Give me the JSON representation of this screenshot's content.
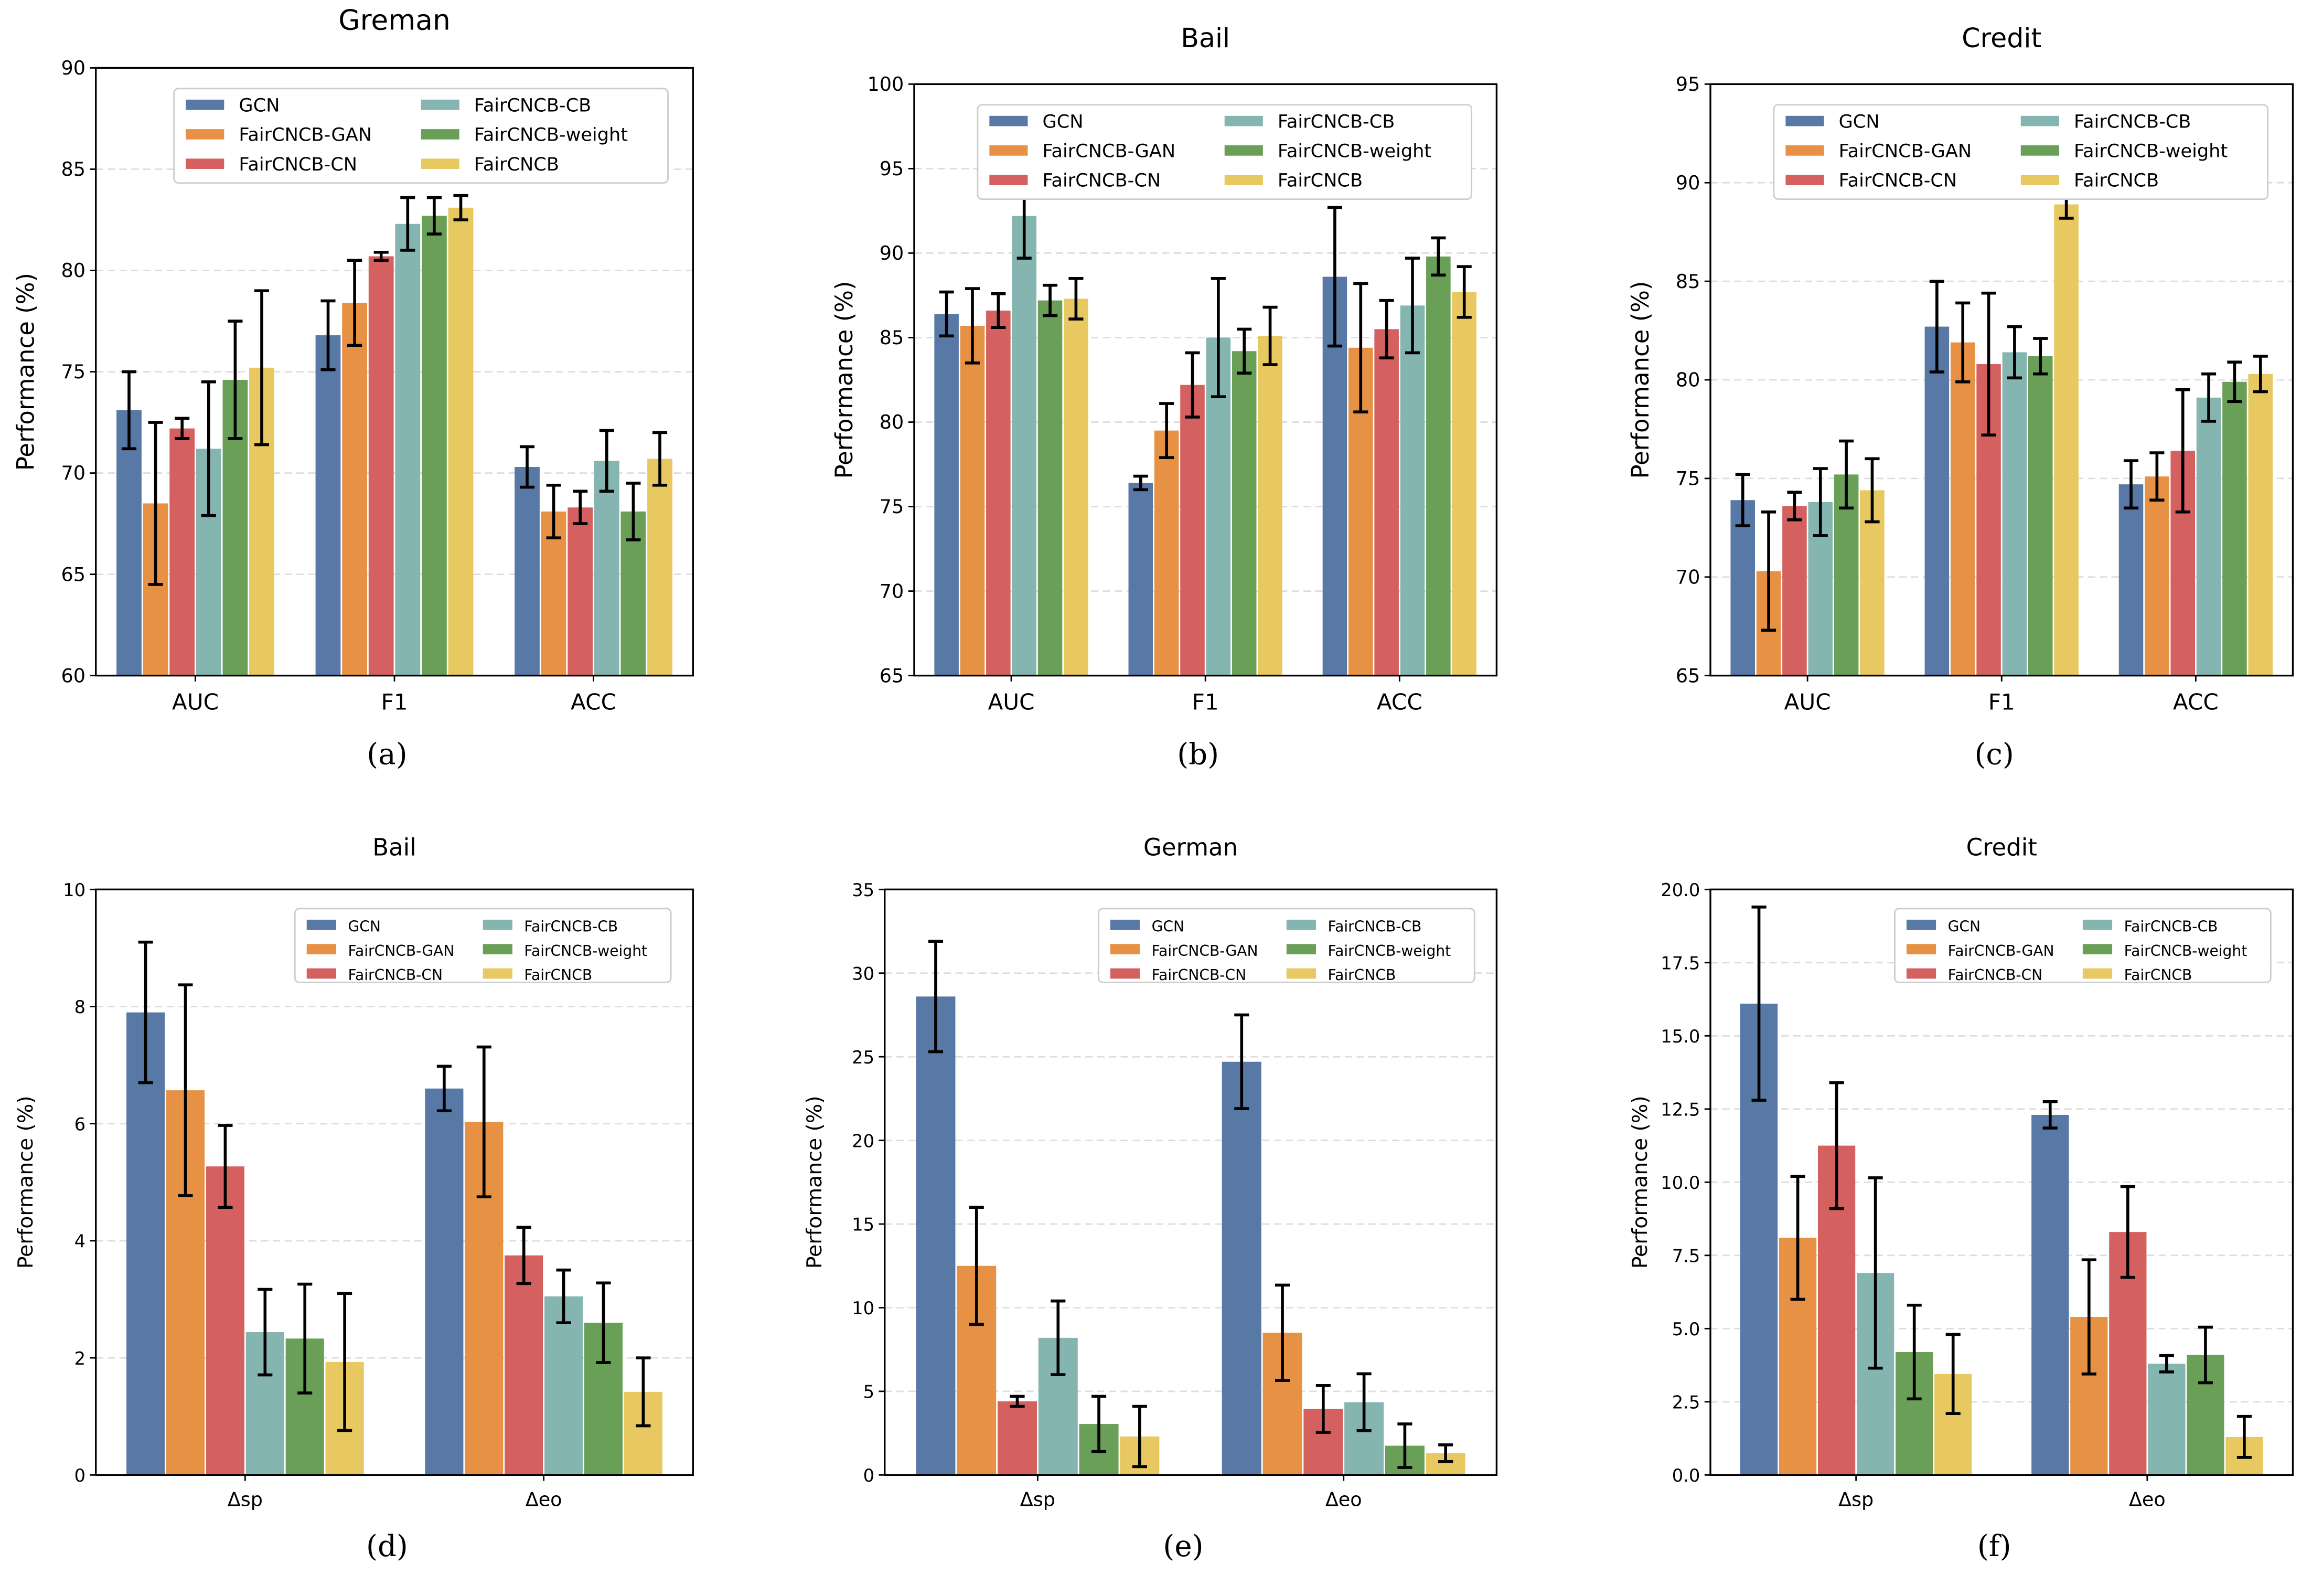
{
  "colors": {
    "GCN": "#5878a5",
    "FairCNCB-GAN": "#e69144",
    "FairCNCB-CN": "#d46060",
    "FairCNCB-CB": "#84b5b0",
    "FairCNCB-weight": "#6a9f58",
    "FairCNCB": "#e8c860"
  },
  "series_names": [
    "GCN",
    "FairCNCB-GAN",
    "FairCNCB-CN",
    "FairCNCB-CB",
    "FairCNCB-weight",
    "FairCNCB"
  ],
  "chart_data": [
    {
      "type": "bar",
      "caption": "(a)",
      "title": "Greman",
      "ylabel": "Performance (%)",
      "ylim": [
        60,
        90
      ],
      "yticks": [
        "60",
        "65",
        "70",
        "75",
        "80",
        "85",
        "90"
      ],
      "categories": [
        "AUC",
        "F1",
        "ACC"
      ],
      "grid": true,
      "legend": "top-right",
      "series": [
        {
          "name": "GCN",
          "values": [
            73.1,
            76.8,
            70.3
          ],
          "errors": [
            1.9,
            1.7,
            1.0
          ]
        },
        {
          "name": "FairCNCB-GAN",
          "values": [
            68.5,
            78.4,
            68.1
          ],
          "errors": [
            4.0,
            2.1,
            1.3
          ]
        },
        {
          "name": "FairCNCB-CN",
          "values": [
            72.2,
            80.7,
            68.3
          ],
          "errors": [
            0.5,
            0.2,
            0.8
          ]
        },
        {
          "name": "FairCNCB-CB",
          "values": [
            71.2,
            82.3,
            70.6
          ],
          "errors": [
            3.3,
            1.3,
            1.5
          ]
        },
        {
          "name": "FairCNCB-weight",
          "values": [
            74.6,
            82.7,
            68.1
          ],
          "errors": [
            2.9,
            0.9,
            1.4
          ]
        },
        {
          "name": "FairCNCB",
          "values": [
            75.2,
            83.1,
            70.7
          ],
          "errors": [
            3.8,
            0.6,
            1.3
          ]
        }
      ]
    },
    {
      "type": "bar",
      "caption": "(b)",
      "title": "Bail",
      "ylabel": "Performance (%)",
      "ylim": [
        65,
        100
      ],
      "yticks": [
        "65",
        "70",
        "75",
        "80",
        "85",
        "90",
        "95",
        "100"
      ],
      "categories": [
        "AUC",
        "F1",
        "ACC"
      ],
      "grid": true,
      "legend": "top-right",
      "series": [
        {
          "name": "GCN",
          "values": [
            86.4,
            76.4,
            88.6
          ],
          "errors": [
            1.3,
            0.4,
            4.1
          ]
        },
        {
          "name": "FairCNCB-GAN",
          "values": [
            85.7,
            79.5,
            84.4
          ],
          "errors": [
            2.2,
            1.6,
            3.8
          ]
        },
        {
          "name": "FairCNCB-CN",
          "values": [
            86.6,
            82.2,
            85.5
          ],
          "errors": [
            1.0,
            1.9,
            1.7
          ]
        },
        {
          "name": "FairCNCB-CB",
          "values": [
            92.2,
            85.0,
            86.9
          ],
          "errors": [
            2.5,
            3.5,
            2.8
          ]
        },
        {
          "name": "FairCNCB-weight",
          "values": [
            87.2,
            84.2,
            89.8
          ],
          "errors": [
            0.9,
            1.3,
            1.1
          ]
        },
        {
          "name": "FairCNCB",
          "values": [
            87.3,
            85.1,
            87.7
          ],
          "errors": [
            1.2,
            1.7,
            1.5
          ]
        }
      ]
    },
    {
      "type": "bar",
      "caption": "(c)",
      "title": "Credit",
      "ylabel": "Performance (%)",
      "ylim": [
        65,
        95
      ],
      "yticks": [
        "65",
        "70",
        "75",
        "80",
        "85",
        "90",
        "95"
      ],
      "categories": [
        "AUC",
        "F1",
        "ACC"
      ],
      "grid": true,
      "legend": "top-right",
      "series": [
        {
          "name": "GCN",
          "values": [
            73.9,
            82.7,
            74.7
          ],
          "errors": [
            1.3,
            2.3,
            1.2
          ]
        },
        {
          "name": "FairCNCB-GAN",
          "values": [
            70.3,
            81.9,
            75.1
          ],
          "errors": [
            3.0,
            2.0,
            1.2
          ]
        },
        {
          "name": "FairCNCB-CN",
          "values": [
            73.6,
            80.8,
            76.4
          ],
          "errors": [
            0.7,
            3.6,
            3.1
          ]
        },
        {
          "name": "FairCNCB-CB",
          "values": [
            73.8,
            81.4,
            79.1
          ],
          "errors": [
            1.7,
            1.3,
            1.2
          ]
        },
        {
          "name": "FairCNCB-weight",
          "values": [
            75.2,
            81.2,
            79.9
          ],
          "errors": [
            1.7,
            0.9,
            1.0
          ]
        },
        {
          "name": "FairCNCB",
          "values": [
            74.4,
            88.9,
            80.3
          ],
          "errors": [
            1.6,
            0.7,
            0.9
          ]
        }
      ]
    },
    {
      "type": "bar",
      "caption": "(d)",
      "title": "Bail",
      "ylabel": "Performance (%)",
      "ylim": [
        0,
        10
      ],
      "yticks": [
        "0",
        "2",
        "4",
        "6",
        "8",
        "10"
      ],
      "categories": [
        "Δsp",
        "Δeo"
      ],
      "grid": true,
      "legend": "top-right",
      "series": [
        {
          "name": "GCN",
          "values": [
            7.9,
            6.6
          ],
          "errors": [
            1.2,
            0.38
          ]
        },
        {
          "name": "FairCNCB-GAN",
          "values": [
            6.57,
            6.03
          ],
          "errors": [
            1.8,
            1.28
          ]
        },
        {
          "name": "FairCNCB-CN",
          "values": [
            5.27,
            3.75
          ],
          "errors": [
            0.7,
            0.48
          ]
        },
        {
          "name": "FairCNCB-CB",
          "values": [
            2.44,
            3.05
          ],
          "errors": [
            0.73,
            0.45
          ]
        },
        {
          "name": "FairCNCB-weight",
          "values": [
            2.33,
            2.6
          ],
          "errors": [
            0.93,
            0.68
          ]
        },
        {
          "name": "FairCNCB",
          "values": [
            1.93,
            1.42
          ],
          "errors": [
            1.17,
            0.58
          ]
        }
      ]
    },
    {
      "type": "bar",
      "caption": "(e)",
      "title": "German",
      "ylabel": "Performance (%)",
      "ylim": [
        0,
        35
      ],
      "yticks": [
        "0",
        "5",
        "10",
        "15",
        "20",
        "25",
        "30",
        "35"
      ],
      "categories": [
        "Δsp",
        "Δeo"
      ],
      "grid": true,
      "legend": "top-right",
      "series": [
        {
          "name": "GCN",
          "values": [
            28.6,
            24.7
          ],
          "errors": [
            3.3,
            2.8
          ]
        },
        {
          "name": "FairCNCB-GAN",
          "values": [
            12.5,
            8.5
          ],
          "errors": [
            3.5,
            2.85
          ]
        },
        {
          "name": "FairCNCB-CN",
          "values": [
            4.4,
            3.95
          ],
          "errors": [
            0.3,
            1.4
          ]
        },
        {
          "name": "FairCNCB-CB",
          "values": [
            8.2,
            4.35
          ],
          "errors": [
            2.2,
            1.7
          ]
        },
        {
          "name": "FairCNCB-weight",
          "values": [
            3.05,
            1.75
          ],
          "errors": [
            1.65,
            1.3
          ]
        },
        {
          "name": "FairCNCB",
          "values": [
            2.3,
            1.3
          ],
          "errors": [
            1.8,
            0.5
          ]
        }
      ]
    },
    {
      "type": "bar",
      "caption": "(f)",
      "title": "Credit",
      "ylabel": "Performance (%)",
      "ylim": [
        0,
        20
      ],
      "yticks": [
        "0.0",
        "2.5",
        "5.0",
        "7.5",
        "10.0",
        "12.5",
        "15.0",
        "17.5",
        "20.0"
      ],
      "categories": [
        "Δsp",
        "Δeo"
      ],
      "grid": true,
      "legend": "top-right",
      "series": [
        {
          "name": "GCN",
          "values": [
            16.1,
            12.3
          ],
          "errors": [
            3.3,
            0.45
          ]
        },
        {
          "name": "FairCNCB-GAN",
          "values": [
            8.1,
            5.4
          ],
          "errors": [
            2.1,
            1.95
          ]
        },
        {
          "name": "FairCNCB-CN",
          "values": [
            11.25,
            8.3
          ],
          "errors": [
            2.15,
            1.55
          ]
        },
        {
          "name": "FairCNCB-CB",
          "values": [
            6.9,
            3.8
          ],
          "errors": [
            3.25,
            0.28
          ]
        },
        {
          "name": "FairCNCB-weight",
          "values": [
            4.2,
            4.1
          ],
          "errors": [
            1.6,
            0.95
          ]
        },
        {
          "name": "FairCNCB",
          "values": [
            3.45,
            1.3
          ],
          "errors": [
            1.35,
            0.7
          ]
        }
      ]
    }
  ]
}
